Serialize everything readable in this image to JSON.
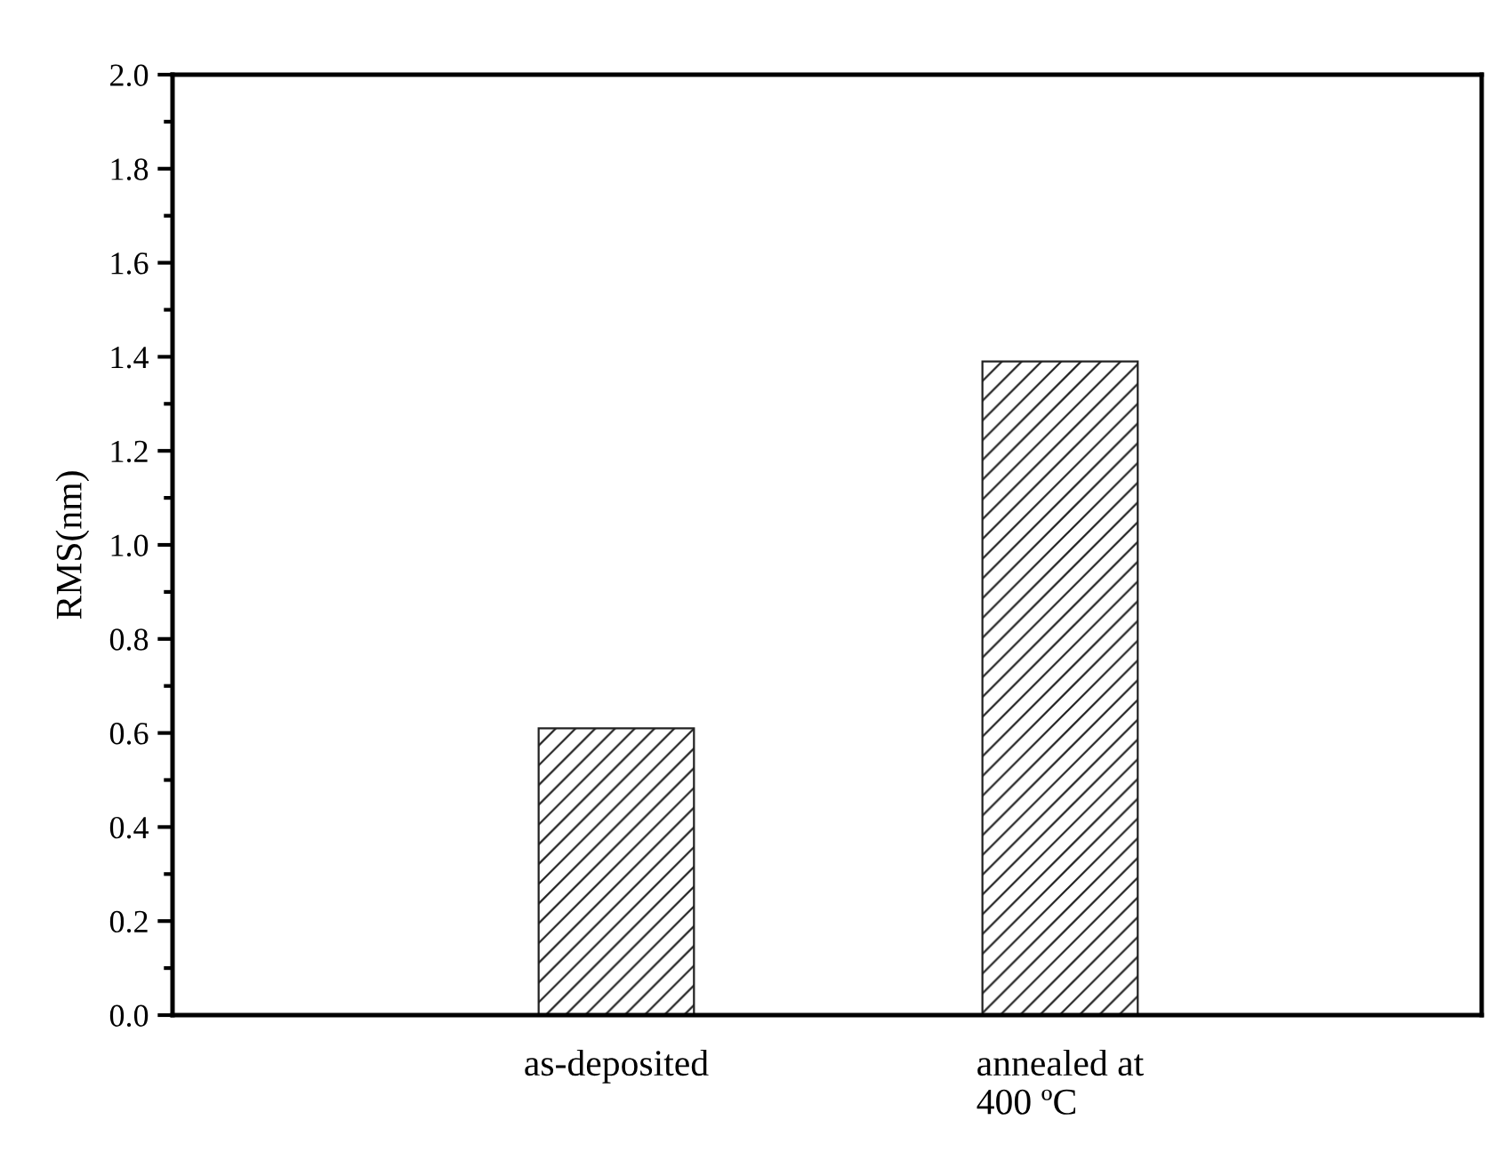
{
  "chart_data": {
    "type": "bar",
    "ylabel": "RMS(nm)",
    "categories": [
      "as-deposited",
      "annealed at\n400 ºC"
    ],
    "values": [
      0.61,
      1.39
    ],
    "color": "#222222",
    "ylim": [
      0.0,
      2.0
    ],
    "yticks": [
      {
        "value": 0.0,
        "label": "0.0"
      },
      {
        "value": 0.2,
        "label": "0.2"
      },
      {
        "value": 0.4,
        "label": "0.4"
      },
      {
        "value": 0.6,
        "label": "0.6"
      },
      {
        "value": 0.8,
        "label": "0.8"
      },
      {
        "value": 1.0,
        "label": "1.0"
      },
      {
        "value": 1.2,
        "label": "1.2"
      },
      {
        "value": 1.4,
        "label": "1.4"
      },
      {
        "value": 1.6,
        "label": "1.6"
      },
      {
        "value": 1.8,
        "label": "1.8"
      },
      {
        "value": 2.0,
        "label": "2.0"
      }
    ],
    "grid": false,
    "legend": false
  }
}
